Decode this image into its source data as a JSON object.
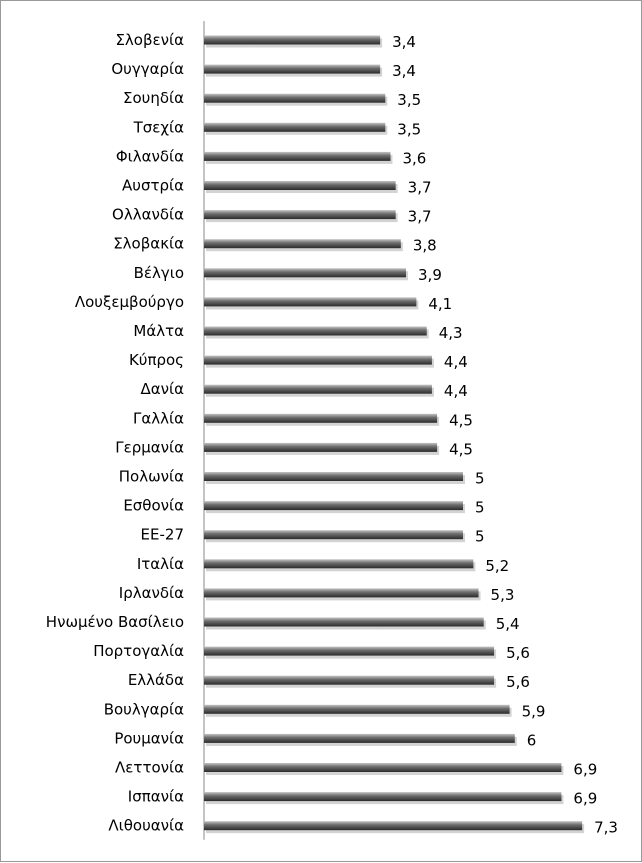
{
  "chart_data": {
    "type": "bar",
    "orientation": "horizontal",
    "categories": [
      "Σλοβενία",
      "Ουγγαρία",
      "Σουηδία",
      "Τσεχία",
      "Φιλανδία",
      "Αυστρία",
      "Ολλανδία",
      "Σλοβακία",
      "Βέλγιο",
      "Λουξεμβούργο",
      "Μάλτα",
      "Κύπρος",
      "Δανία",
      "Γαλλία",
      "Γερμανία",
      "Πολωνία",
      "Εσθονία",
      "ΕΕ-27",
      "Ιταλία",
      "Ιρλανδία",
      "Ηνωμένο Βασίλειο",
      "Πορτογαλία",
      "Ελλάδα",
      "Βουλγαρία",
      "Ρουμανία",
      "Λεττονία",
      "Ισπανία",
      "Λιθουανία"
    ],
    "values": [
      3.4,
      3.4,
      3.5,
      3.5,
      3.6,
      3.7,
      3.7,
      3.8,
      3.9,
      4.1,
      4.3,
      4.4,
      4.4,
      4.5,
      4.5,
      5,
      5,
      5,
      5.2,
      5.3,
      5.4,
      5.6,
      5.6,
      5.9,
      6,
      6.9,
      6.9,
      7.3
    ],
    "value_labels": [
      "3,4",
      "3,4",
      "3,5",
      "3,5",
      "3,6",
      "3,7",
      "3,7",
      "3,8",
      "3,9",
      "4,1",
      "4,3",
      "4,4",
      "4,4",
      "4,5",
      "4,5",
      "5",
      "5",
      "5",
      "5,2",
      "5,3",
      "5,4",
      "5,6",
      "5,6",
      "5,9",
      "6",
      "6,9",
      "6,9",
      "7,3"
    ],
    "title": "",
    "xlabel": "",
    "ylabel": "",
    "xlim": [
      0,
      7.3
    ],
    "grid": false,
    "legend": "none",
    "colors": {
      "bar_dark": "#2b2b2b",
      "bar_mid": "#6e6e6e",
      "bar_light": "#c4c4c4",
      "axis": "#888888",
      "shadow": "#b5b5b5"
    }
  }
}
